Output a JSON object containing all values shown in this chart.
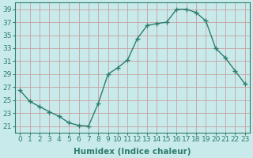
{
  "x": [
    0,
    1,
    2,
    3,
    4,
    5,
    6,
    7,
    8,
    9,
    10,
    11,
    12,
    13,
    14,
    15,
    16,
    17,
    18,
    19,
    20,
    21,
    22,
    23
  ],
  "y": [
    26.5,
    24.8,
    24.0,
    23.2,
    22.5,
    21.5,
    21.1,
    21.0,
    24.5,
    29.0,
    30.0,
    31.2,
    34.5,
    36.5,
    36.8,
    37.0,
    39.0,
    39.0,
    38.5,
    37.2,
    33.0,
    31.5,
    29.5,
    27.5
  ],
  "line_color": "#2e7d6e",
  "marker": "+",
  "marker_size": 4,
  "bg_color": "#c8eaea",
  "grid_color_major": "#c8a0a0",
  "grid_color_minor": "#c8a0a0",
  "xlabel": "Humidex (Indice chaleur)",
  "xlim": [
    -0.5,
    23.5
  ],
  "ylim": [
    20,
    40
  ],
  "yticks": [
    21,
    23,
    25,
    27,
    29,
    31,
    33,
    35,
    37,
    39
  ],
  "xticks": [
    0,
    1,
    2,
    3,
    4,
    5,
    6,
    7,
    8,
    9,
    10,
    11,
    12,
    13,
    14,
    15,
    16,
    17,
    18,
    19,
    20,
    21,
    22,
    23
  ],
  "tick_label_fontsize": 6.5,
  "xlabel_fontsize": 7.5,
  "line_width": 1.0
}
